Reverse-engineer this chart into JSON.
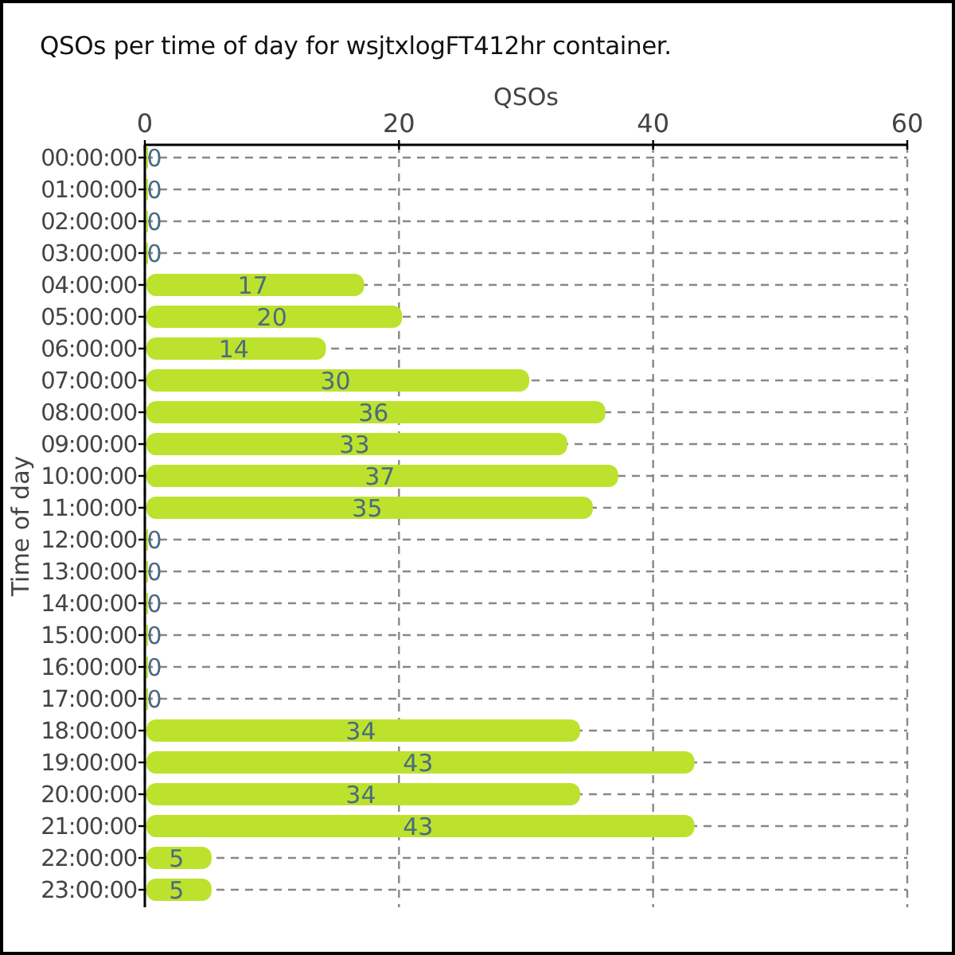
{
  "chart_data": {
    "type": "bar",
    "orientation": "horizontal",
    "title": "QSOs per time of day for wsjtxlogFT412hr container.",
    "xlabel": "QSOs",
    "ylabel": "Time of day",
    "categories": [
      "00:00:00",
      "01:00:00",
      "02:00:00",
      "03:00:00",
      "04:00:00",
      "05:00:00",
      "06:00:00",
      "07:00:00",
      "08:00:00",
      "09:00:00",
      "10:00:00",
      "11:00:00",
      "12:00:00",
      "13:00:00",
      "14:00:00",
      "15:00:00",
      "16:00:00",
      "17:00:00",
      "18:00:00",
      "19:00:00",
      "20:00:00",
      "21:00:00",
      "22:00:00",
      "23:00:00"
    ],
    "values": [
      0,
      0,
      0,
      0,
      17,
      20,
      14,
      30,
      36,
      33,
      37,
      35,
      0,
      0,
      0,
      0,
      0,
      0,
      34,
      43,
      34,
      43,
      5,
      5
    ],
    "color": "#bde22e",
    "xlim": [
      0,
      60
    ],
    "xticks": [
      0,
      20,
      40,
      60
    ],
    "grid": true,
    "data_labels": true
  }
}
